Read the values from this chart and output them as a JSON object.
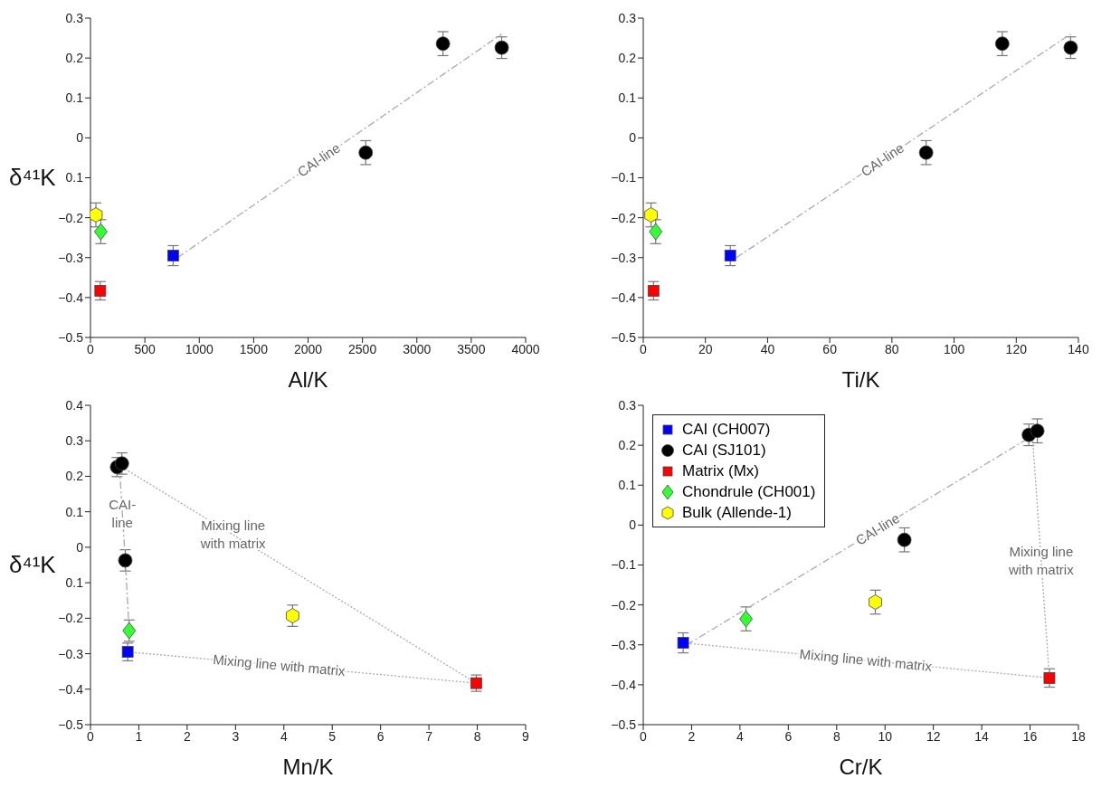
{
  "chart_data": [
    {
      "type": "scatter",
      "xlabel": "Al/K",
      "ylabel": "δ⁴¹K",
      "xlim": [
        0,
        4000
      ],
      "xticks": [
        0,
        500,
        1000,
        1500,
        2000,
        2500,
        3000,
        3500,
        4000
      ],
      "ylim": [
        -0.5,
        0.3
      ],
      "yticks": [
        -0.5,
        -0.4,
        -0.3,
        -0.2,
        {
          "value": -0.1,
          "label": "0.1"
        },
        0,
        0.1,
        0.2,
        0.3
      ],
      "series": [
        {
          "type": "line",
          "color": "#aaaaaa",
          "line_style": "dashed",
          "marker": "none",
          "x": [
            800,
            3780
          ],
          "values": [
            -0.3,
            0.26
          ]
        },
        {
          "color": "#0000ff",
          "marker": "square",
          "x": [
            760
          ],
          "values": [
            -0.295
          ],
          "errors": [
            0.025
          ]
        },
        {
          "color": "#000000",
          "marker": "circle",
          "x": [
            2530,
            3240,
            3780
          ],
          "values": [
            -0.037,
            0.236,
            0.226
          ],
          "errors": [
            0.03,
            0.03,
            0.027
          ]
        },
        {
          "color": "#ff0000",
          "marker": "square",
          "x": [
            90
          ],
          "values": [
            -0.383
          ],
          "errors": [
            0.023
          ]
        },
        {
          "color": "#33ff33",
          "marker": "diamond",
          "x": [
            95
          ],
          "values": [
            -0.235
          ],
          "errors": [
            0.03
          ]
        },
        {
          "color": "#ffff00",
          "x": [
            50
          ],
          "values": [
            -0.193
          ],
          "errors": [
            0.03
          ]
        }
      ],
      "annotations": [
        {
          "text": "CAI-line",
          "x": 2100,
          "y": -0.0557
        }
      ]
    },
    {
      "type": "scatter",
      "xlabel": "Ti/K",
      "xlim": [
        0,
        140
      ],
      "xticks": [
        0,
        20,
        40,
        60,
        80,
        100,
        120,
        140
      ],
      "ylim": [
        -0.5,
        0.3
      ],
      "yticks": [
        -0.5,
        -0.4,
        -0.3,
        -0.2,
        -0.1,
        0,
        0.1,
        0.2,
        0.3
      ],
      "series": [
        {
          "type": "line",
          "color": "#aaaaaa",
          "line_style": "dashed",
          "marker": "none",
          "x": [
            30,
            137.5
          ],
          "values": [
            -0.3,
            0.26
          ]
        },
        {
          "color": "#0000ff",
          "marker": "square",
          "x": [
            28
          ],
          "values": [
            -0.295
          ],
          "errors": [
            0.025
          ]
        },
        {
          "color": "#000000",
          "marker": "circle",
          "x": [
            91,
            115.5,
            137.5
          ],
          "values": [
            -0.037,
            0.236,
            0.226
          ],
          "errors": [
            0.03,
            0.03,
            0.027
          ]
        },
        {
          "color": "#ff0000",
          "marker": "square",
          "x": [
            3.3
          ],
          "values": [
            -0.383
          ],
          "errors": [
            0.023
          ]
        },
        {
          "color": "#33ff33",
          "marker": "diamond",
          "x": [
            4
          ],
          "values": [
            -0.235
          ],
          "errors": [
            0.03
          ]
        },
        {
          "color": "#ffff00",
          "x": [
            2.5
          ],
          "values": [
            -0.193
          ],
          "errors": [
            0.03
          ]
        }
      ],
      "annotations": [
        {
          "text": "CAI-line",
          "x": 77,
          "y": -0.0552
        }
      ]
    },
    {
      "type": "scatter",
      "xlabel": "Mn/K",
      "ylabel": "δ⁴¹K",
      "xlim": [
        0,
        9
      ],
      "xticks": [
        0,
        1,
        2,
        3,
        4,
        5,
        6,
        7,
        8,
        9
      ],
      "ylim": [
        -0.5,
        0.4
      ],
      "yticks": [
        -0.5,
        -0.4,
        -0.3,
        -0.2,
        {
          "value": -0.1,
          "label": "0.1"
        },
        0,
        0.1,
        0.2,
        0.3,
        0.4
      ],
      "series": [
        {
          "type": "line",
          "color": "#aaaaaa",
          "line_style": "dashed",
          "marker": "none",
          "x": [
            0.6,
            0.72,
            0.8
          ],
          "values": [
            0.226,
            -0.037,
            -0.235
          ]
        },
        {
          "type": "line",
          "color": "#aaaaaa",
          "line_style": "dotted",
          "marker": "none",
          "x": [
            0.65,
            7.98
          ],
          "values": [
            0.226,
            -0.383
          ]
        },
        {
          "type": "line",
          "color": "#aaaaaa",
          "line_style": "dotted",
          "marker": "none",
          "x": [
            0.77,
            7.98
          ],
          "values": [
            -0.295,
            -0.383
          ]
        },
        {
          "color": "#0000ff",
          "marker": "square",
          "x": [
            0.77
          ],
          "values": [
            -0.295
          ],
          "errors": [
            0.025
          ]
        },
        {
          "color": "#000000",
          "marker": "circle",
          "x": [
            0.55,
            0.65,
            0.72
          ],
          "values": [
            0.226,
            0.236,
            -0.037
          ],
          "errors": [
            0.027,
            0.03,
            0.03
          ]
        },
        {
          "color": "#ff0000",
          "marker": "square",
          "x": [
            7.98
          ],
          "values": [
            -0.383
          ],
          "errors": [
            0.023
          ]
        },
        {
          "color": "#33ff33",
          "marker": "diamond",
          "x": [
            0.8
          ],
          "values": [
            -0.235
          ],
          "errors": [
            0.03
          ]
        },
        {
          "color": "#ffff00",
          "x": [
            4.18
          ],
          "values": [
            -0.193
          ],
          "errors": [
            0.03
          ]
        }
      ],
      "annotations": [
        {
          "text": "CAI-\nline",
          "x": 0.66,
          "y": 0.0945
        },
        {
          "text": "Mixing line\nwith matrix",
          "x": 2.95,
          "y": 0.035
        },
        {
          "text": "Mixing line with matrix",
          "x": 3.9,
          "y": -0.3332
        }
      ]
    },
    {
      "type": "scatter",
      "xlabel": "Cr/K",
      "legend": "top left",
      "xlim": [
        0,
        18
      ],
      "xticks": [
        0,
        2,
        4,
        6,
        8,
        10,
        12,
        14,
        16,
        18
      ],
      "ylim": [
        -0.5,
        0.3
      ],
      "yticks": [
        -0.5,
        -0.4,
        -0.3,
        -0.2,
        -0.1,
        0,
        0.1,
        0.2,
        0.3
      ],
      "series": [
        {
          "type": "line",
          "color": "#aaaaaa",
          "line_style": "dashed",
          "marker": "none",
          "x": [
            1.8,
            16
          ],
          "values": [
            -0.3,
            0.22
          ]
        },
        {
          "type": "line",
          "color": "#aaaaaa",
          "line_style": "dotted",
          "marker": "none",
          "x": [
            16.1,
            16.8
          ],
          "values": [
            0.22,
            -0.383
          ]
        },
        {
          "type": "line",
          "color": "#aaaaaa",
          "line_style": "dotted",
          "marker": "none",
          "x": [
            1.65,
            16.8
          ],
          "values": [
            -0.295,
            -0.383
          ]
        },
        {
          "name": "CAI (CH007)",
          "color": "#0000ff",
          "marker": "square",
          "x": [
            1.65
          ],
          "values": [
            -0.295
          ],
          "errors": [
            0.025
          ]
        },
        {
          "name": "CAI (SJ101)",
          "color": "#000000",
          "marker": "circle",
          "x": [
            10.8,
            15.95,
            16.3
          ],
          "values": [
            -0.037,
            0.226,
            0.236
          ],
          "errors": [
            0.03,
            0.027,
            0.03
          ]
        },
        {
          "name": "Matrix (Mx)",
          "color": "#ff0000",
          "marker": "square",
          "x": [
            16.8
          ],
          "values": [
            -0.383
          ],
          "errors": [
            0.023
          ]
        },
        {
          "name": "Chondrule (CH001)",
          "color": "#33ff33",
          "marker": "diamond",
          "x": [
            4.25
          ],
          "values": [
            -0.235
          ],
          "errors": [
            0.03
          ]
        },
        {
          "name": "Bulk (Allende-1)",
          "color": "#ffff00",
          "x": [
            9.6
          ],
          "values": [
            -0.193
          ],
          "errors": [
            0.03
          ]
        }
      ],
      "annotations": [
        {
          "text": "CAI-line",
          "x": 9.7,
          "y": -0.0107
        },
        {
          "text": "Mixing line\nwith matrix",
          "x": 16.46,
          "y": -0.09
        },
        {
          "text": "Mixing line with matrix",
          "x": 9.2,
          "y": -0.3389
        }
      ]
    }
  ]
}
